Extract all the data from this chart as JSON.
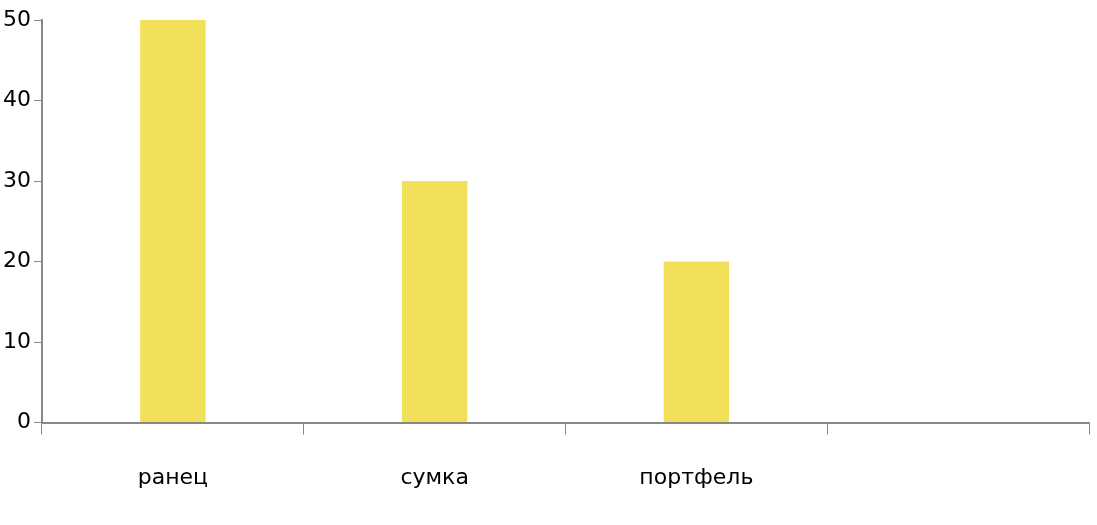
{
  "chart_data": {
    "type": "bar",
    "categories": [
      "ранец",
      "сумка",
      "портфель",
      null
    ],
    "series": [
      {
        "color": "#f2e05a",
        "values": [
          50,
          30,
          20,
          null
        ]
      }
    ],
    "ylim": [
      0,
      50
    ],
    "yticks": [
      0,
      10,
      20,
      30,
      40,
      50
    ],
    "grid": false,
    "legend": false
  }
}
